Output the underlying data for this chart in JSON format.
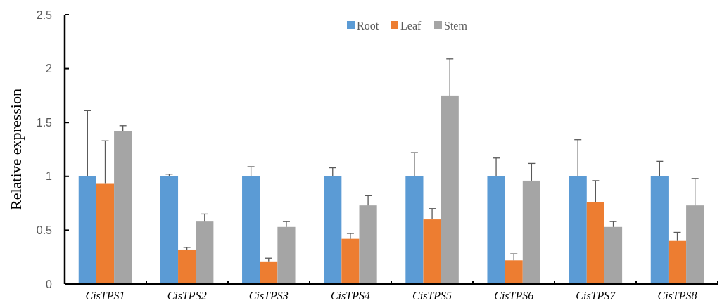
{
  "chart_data": {
    "type": "bar",
    "ylabel": "Relative expression",
    "categories": [
      "CisTPS1",
      "CisTPS2",
      "CisTPS3",
      "CisTPS4",
      "CisTPS5",
      "CisTPS6",
      "CisTPS7",
      "CisTPS8"
    ],
    "series": [
      {
        "name": "Root",
        "color": "#5b9bd5",
        "values": [
          1,
          1,
          1,
          1,
          1,
          1,
          1,
          1
        ],
        "errors": [
          [
            1,
            1.61
          ],
          [
            1,
            1.02
          ],
          [
            1,
            1.09
          ],
          [
            1,
            1.08
          ],
          [
            1,
            1.22
          ],
          [
            1,
            1.17
          ],
          [
            1,
            1.34
          ],
          [
            1,
            1.14
          ]
        ]
      },
      {
        "name": "Leaf",
        "color": "#ed7d31",
        "values": [
          0.93,
          0.32,
          0.21,
          0.42,
          0.6,
          0.22,
          0.76,
          0.4
        ],
        "errors": [
          [
            0.93,
            1.33
          ],
          [
            0.32,
            0.34
          ],
          [
            0.21,
            0.24
          ],
          [
            0.42,
            0.47
          ],
          [
            0.6,
            0.7
          ],
          [
            0.22,
            0.28
          ],
          [
            0.76,
            0.96
          ],
          [
            0.4,
            0.48
          ]
        ]
      },
      {
        "name": "Stem",
        "color": "#a5a5a5",
        "values": [
          1.42,
          0.58,
          0.53,
          0.73,
          1.75,
          0.96,
          0.53,
          0.73
        ],
        "errors": [
          [
            1.42,
            1.47
          ],
          [
            0.58,
            0.65
          ],
          [
            0.53,
            0.58
          ],
          [
            0.73,
            0.82
          ],
          [
            1.75,
            2.09
          ],
          [
            0.96,
            1.12
          ],
          [
            0.53,
            0.58
          ],
          [
            0.73,
            0.98
          ]
        ]
      }
    ],
    "ylim": [
      0,
      2.5
    ],
    "yticks": [
      0,
      0.5,
      1,
      1.5,
      2,
      2.5
    ],
    "grid": false,
    "legend": "top"
  }
}
